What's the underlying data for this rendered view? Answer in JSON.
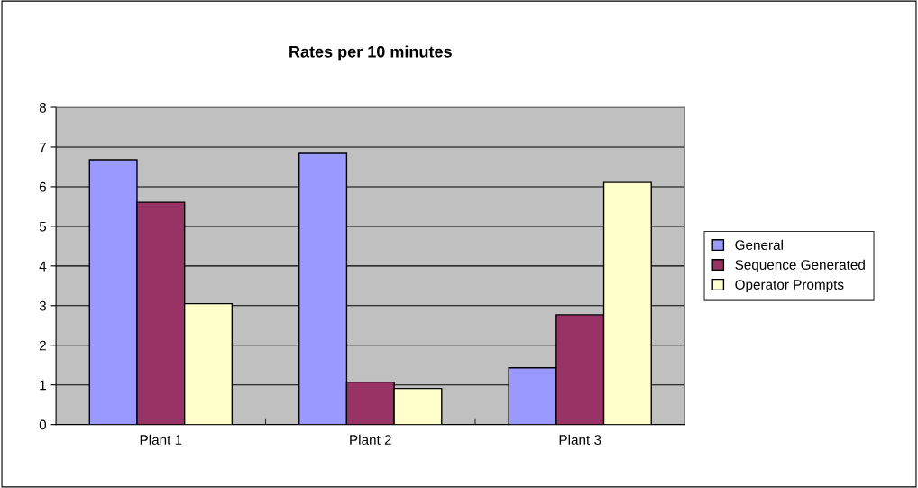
{
  "chart_data": {
    "type": "bar",
    "title": "Rates per 10 minutes",
    "categories": [
      "Plant 1",
      "Plant 2",
      "Plant 3"
    ],
    "series": [
      {
        "name": "General",
        "color": "#9999ff",
        "values": [
          6.68,
          6.84,
          1.43
        ]
      },
      {
        "name": "Sequence Generated",
        "color": "#993366",
        "values": [
          5.61,
          1.07,
          2.77
        ]
      },
      {
        "name": "Operator Prompts",
        "color": "#ffffcc",
        "values": [
          3.05,
          0.91,
          6.11
        ]
      }
    ],
    "ylim": [
      0,
      8
    ],
    "yticks": [
      0,
      1,
      2,
      3,
      4,
      5,
      6,
      7,
      8
    ],
    "grid": "y",
    "legend": "right"
  }
}
